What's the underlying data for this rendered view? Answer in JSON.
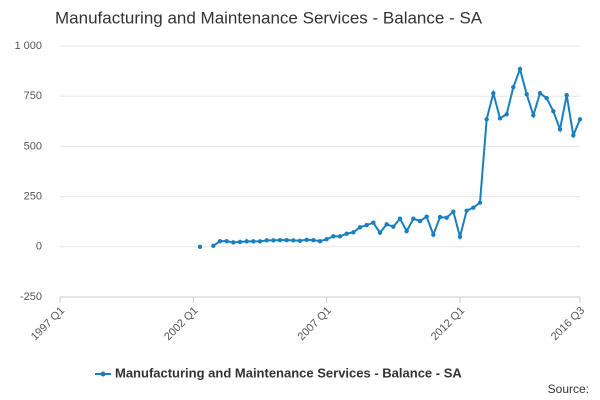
{
  "chart_data": {
    "type": "line",
    "title": "Manufacturing and Maintenance Services - Balance - SA",
    "source": "Source:",
    "categories": [
      "1997 Q1",
      null,
      null,
      null,
      null,
      null,
      null,
      null,
      null,
      null,
      null,
      null,
      null,
      null,
      null,
      null,
      null,
      null,
      null,
      null,
      "2002 Q1",
      null,
      null,
      null,
      null,
      null,
      null,
      null,
      null,
      null,
      null,
      null,
      null,
      null,
      null,
      null,
      null,
      null,
      null,
      null,
      "2007 Q1",
      null,
      null,
      null,
      null,
      null,
      null,
      null,
      null,
      null,
      null,
      null,
      null,
      null,
      null,
      null,
      null,
      null,
      null,
      null,
      "2012 Q1",
      null,
      null,
      null,
      null,
      null,
      null,
      null,
      null,
      null,
      null,
      null,
      null,
      null,
      null,
      null,
      null,
      null,
      "2016 Q3"
    ],
    "series": [
      {
        "name": "Manufacturing and Maintenance Services - Balance - SA",
        "color": "#1a7fbd",
        "values": [
          null,
          null,
          null,
          null,
          null,
          null,
          null,
          null,
          null,
          null,
          null,
          null,
          null,
          null,
          null,
          null,
          null,
          null,
          null,
          null,
          null,
          0,
          null,
          5,
          28,
          28,
          22,
          24,
          27,
          27,
          27,
          32,
          32,
          33,
          33,
          32,
          30,
          35,
          33,
          28,
          38,
          52,
          52,
          65,
          72,
          97,
          108,
          120,
          70,
          112,
          100,
          140,
          78,
          140,
          128,
          150,
          60,
          148,
          145,
          175,
          50,
          180,
          195,
          220,
          635,
          765,
          640,
          660,
          795,
          885,
          760,
          655,
          765,
          740,
          675,
          585,
          755,
          555,
          635
        ]
      }
    ],
    "ylim": [
      -250,
      1000
    ],
    "yticks": [
      {
        "value": 1000,
        "label": "1 000"
      },
      750,
      500,
      250,
      0,
      -250
    ],
    "grid": true
  }
}
